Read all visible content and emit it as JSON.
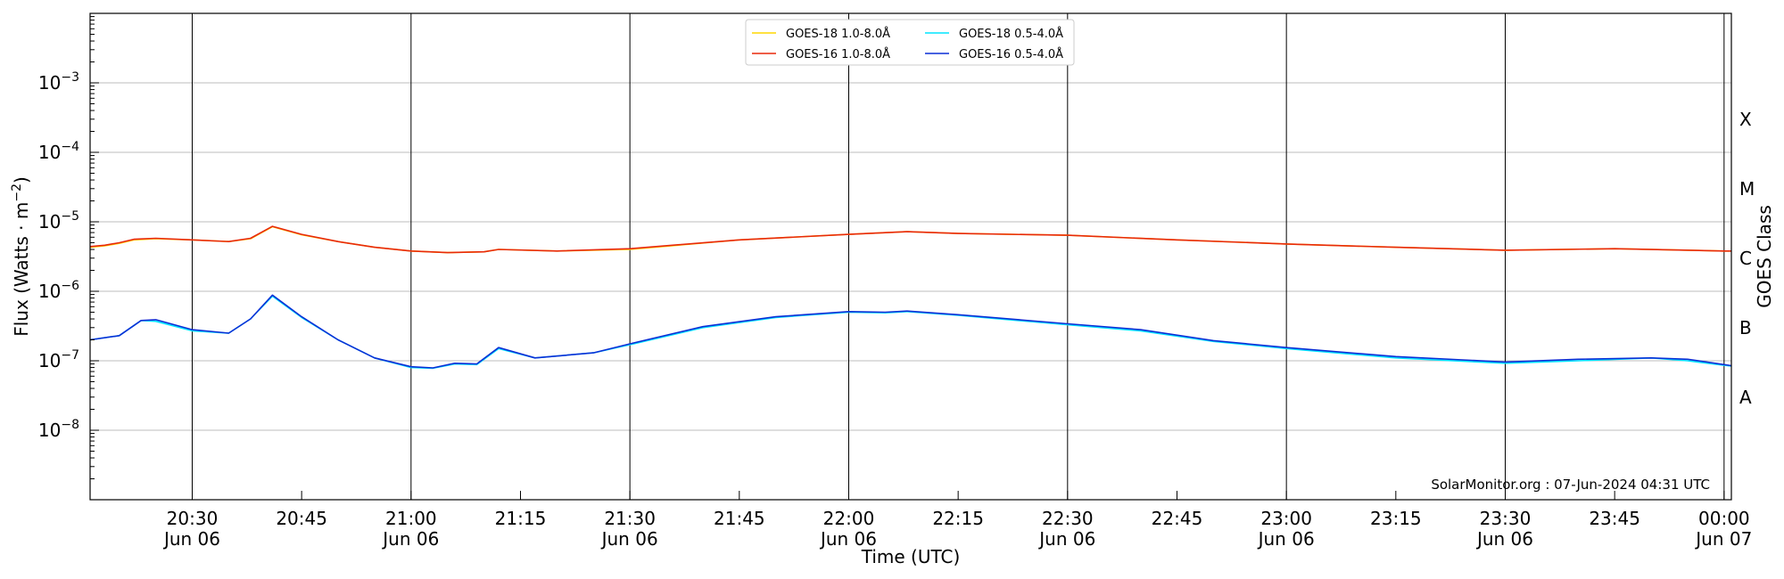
{
  "chart_data": {
    "type": "line",
    "xlabel": "Time (UTC)",
    "ylabel_main": "Flux (Watts · m",
    "ylabel_exp": "−2",
    "ylabel_close": ")",
    "y2label": "GOES Class",
    "yscale": "log",
    "ylim": [
      1e-09,
      0.01
    ],
    "xlim": [
      "2024-06-06T20:16",
      "2024-06-07T00:01"
    ],
    "grid": true,
    "legend_position": "upper-center",
    "credit": "SolarMonitor.org : 07-Jun-2024 04:31 UTC",
    "y_ticks": [
      {
        "value": 1e-08,
        "base": "10",
        "exp": "−8"
      },
      {
        "value": 1e-07,
        "base": "10",
        "exp": "−7"
      },
      {
        "value": 1e-06,
        "base": "10",
        "exp": "−6"
      },
      {
        "value": 1e-05,
        "base": "10",
        "exp": "−5"
      },
      {
        "value": 0.0001,
        "base": "10",
        "exp": "−4"
      },
      {
        "value": 0.001,
        "base": "10",
        "exp": "−3"
      }
    ],
    "x_ticks": [
      {
        "time": "2024-06-06T20:30",
        "line1": "20:30",
        "line2": "Jun 06"
      },
      {
        "time": "2024-06-06T20:45",
        "line1": "20:45",
        "line2": ""
      },
      {
        "time": "2024-06-06T21:00",
        "line1": "21:00",
        "line2": "Jun 06"
      },
      {
        "time": "2024-06-06T21:15",
        "line1": "21:15",
        "line2": ""
      },
      {
        "time": "2024-06-06T21:30",
        "line1": "21:30",
        "line2": "Jun 06"
      },
      {
        "time": "2024-06-06T21:45",
        "line1": "21:45",
        "line2": ""
      },
      {
        "time": "2024-06-06T22:00",
        "line1": "22:00",
        "line2": "Jun 06"
      },
      {
        "time": "2024-06-06T22:15",
        "line1": "22:15",
        "line2": ""
      },
      {
        "time": "2024-06-06T22:30",
        "line1": "22:30",
        "line2": "Jun 06"
      },
      {
        "time": "2024-06-06T22:45",
        "line1": "22:45",
        "line2": ""
      },
      {
        "time": "2024-06-06T23:00",
        "line1": "23:00",
        "line2": "Jun 06"
      },
      {
        "time": "2024-06-06T23:15",
        "line1": "23:15",
        "line2": ""
      },
      {
        "time": "2024-06-06T23:30",
        "line1": "23:30",
        "line2": "Jun 06"
      },
      {
        "time": "2024-06-06T23:45",
        "line1": "23:45",
        "line2": ""
      },
      {
        "time": "2024-06-07T00:00",
        "line1": "00:00",
        "line2": "Jun 07"
      }
    ],
    "vertical_lines": [
      "2024-06-06T20:30",
      "2024-06-06T21:00",
      "2024-06-06T21:30",
      "2024-06-06T22:00",
      "2024-06-06T22:30",
      "2024-06-06T23:00",
      "2024-06-06T23:30",
      "2024-06-07T00:00"
    ],
    "goes_classes": [
      {
        "label": "A",
        "flux": 3e-08
      },
      {
        "label": "B",
        "flux": 3e-07
      },
      {
        "label": "C",
        "flux": 3e-06
      },
      {
        "label": "M",
        "flux": 3e-05
      },
      {
        "label": "X",
        "flux": 0.0003
      }
    ],
    "series": [
      {
        "name": "GOES-18 1.0-8.0Å",
        "color": "#FFD700",
        "x": [
          "2024-06-06T20:16",
          "2024-06-06T20:18",
          "2024-06-06T20:20",
          "2024-06-06T20:22",
          "2024-06-06T20:25",
          "2024-06-06T20:30",
          "2024-06-06T20:35",
          "2024-06-06T20:38",
          "2024-06-06T20:41",
          "2024-06-06T20:45",
          "2024-06-06T20:50",
          "2024-06-06T20:55",
          "2024-06-06T21:00",
          "2024-06-06T21:05",
          "2024-06-06T21:10",
          "2024-06-06T21:12",
          "2024-06-06T21:20",
          "2024-06-06T21:30",
          "2024-06-06T21:45",
          "2024-06-06T22:00",
          "2024-06-06T22:08",
          "2024-06-06T22:15",
          "2024-06-06T22:30",
          "2024-06-06T22:45",
          "2024-06-06T23:00",
          "2024-06-06T23:15",
          "2024-06-06T23:30",
          "2024-06-06T23:45",
          "2024-06-07T00:00",
          "2024-06-07T00:01"
        ],
        "y": [
          4.3e-06,
          4.5e-06,
          4.9e-06,
          5.5e-06,
          5.7e-06,
          5.5e-06,
          5.2e-06,
          5.7e-06,
          8.5e-06,
          6.5e-06,
          5.2e-06,
          4.3e-06,
          3.8e-06,
          3.6e-06,
          3.7e-06,
          4e-06,
          3.8e-06,
          4e-06,
          5.5e-06,
          6.6e-06,
          7.2e-06,
          6.8e-06,
          6.4e-06,
          5.5e-06,
          4.8e-06,
          4.3e-06,
          3.9e-06,
          4.1e-06,
          3.8e-06,
          3.8e-06
        ]
      },
      {
        "name": "GOES-18 0.5-4.0Å",
        "color": "#00E5FF",
        "x": [
          "2024-06-06T20:16",
          "2024-06-06T20:20",
          "2024-06-06T20:23",
          "2024-06-06T20:25",
          "2024-06-06T20:30",
          "2024-06-06T20:35",
          "2024-06-06T20:38",
          "2024-06-06T20:41",
          "2024-06-06T20:45",
          "2024-06-06T20:50",
          "2024-06-06T20:55",
          "2024-06-06T21:00",
          "2024-06-06T21:03",
          "2024-06-06T21:06",
          "2024-06-06T21:09",
          "2024-06-06T21:12",
          "2024-06-06T21:17",
          "2024-06-06T21:25",
          "2024-06-06T21:30",
          "2024-06-06T21:40",
          "2024-06-06T21:50",
          "2024-06-06T22:00",
          "2024-06-06T22:05",
          "2024-06-06T22:08",
          "2024-06-06T22:15",
          "2024-06-06T22:30",
          "2024-06-06T22:40",
          "2024-06-06T22:50",
          "2024-06-06T23:00",
          "2024-06-06T23:15",
          "2024-06-06T23:30",
          "2024-06-06T23:40",
          "2024-06-06T23:50",
          "2024-06-06T23:55",
          "2024-06-07T00:00",
          "2024-06-07T00:01"
        ],
        "y": [
          2e-07,
          2.3e-07,
          3.8e-07,
          3.7e-07,
          2.7e-07,
          2.5e-07,
          4e-07,
          8.5e-07,
          4.2e-07,
          2e-07,
          1.1e-07,
          8e-08,
          7.8e-08,
          9e-08,
          8.8e-08,
          1.5e-07,
          1.1e-07,
          1.3e-07,
          1.7e-07,
          3e-07,
          4.2e-07,
          5e-07,
          4.9e-07,
          5.1e-07,
          4.5e-07,
          3.3e-07,
          2.7e-07,
          1.9e-07,
          1.5e-07,
          1.1e-07,
          9.2e-08,
          1e-07,
          1.1e-07,
          1e-07,
          8.6e-08,
          8.4e-08
        ]
      },
      {
        "name": "GOES-16 1.0-8.0Å",
        "color": "#E8290B",
        "x": [
          "2024-06-06T20:16",
          "2024-06-06T20:18",
          "2024-06-06T20:20",
          "2024-06-06T20:22",
          "2024-06-06T20:25",
          "2024-06-06T20:30",
          "2024-06-06T20:35",
          "2024-06-06T20:38",
          "2024-06-06T20:41",
          "2024-06-06T20:45",
          "2024-06-06T20:50",
          "2024-06-06T20:55",
          "2024-06-06T21:00",
          "2024-06-06T21:05",
          "2024-06-06T21:10",
          "2024-06-06T21:12",
          "2024-06-06T21:20",
          "2024-06-06T21:30",
          "2024-06-06T21:45",
          "2024-06-06T22:00",
          "2024-06-06T22:08",
          "2024-06-06T22:15",
          "2024-06-06T22:30",
          "2024-06-06T22:45",
          "2024-06-06T23:00",
          "2024-06-06T23:15",
          "2024-06-06T23:30",
          "2024-06-06T23:45",
          "2024-06-07T00:00",
          "2024-06-07T00:01"
        ],
        "y": [
          4.4e-06,
          4.6e-06,
          5e-06,
          5.6e-06,
          5.8e-06,
          5.5e-06,
          5.2e-06,
          5.8e-06,
          8.6e-06,
          6.6e-06,
          5.2e-06,
          4.3e-06,
          3.8e-06,
          3.6e-06,
          3.7e-06,
          4e-06,
          3.8e-06,
          4.1e-06,
          5.5e-06,
          6.6e-06,
          7.2e-06,
          6.8e-06,
          6.4e-06,
          5.5e-06,
          4.8e-06,
          4.3e-06,
          3.9e-06,
          4.1e-06,
          3.8e-06,
          3.8e-06
        ]
      },
      {
        "name": "GOES-16 0.5-4.0Å",
        "color": "#0A2FD6",
        "x": [
          "2024-06-06T20:16",
          "2024-06-06T20:20",
          "2024-06-06T20:23",
          "2024-06-06T20:25",
          "2024-06-06T20:30",
          "2024-06-06T20:35",
          "2024-06-06T20:38",
          "2024-06-06T20:41",
          "2024-06-06T20:45",
          "2024-06-06T20:50",
          "2024-06-06T20:55",
          "2024-06-06T21:00",
          "2024-06-06T21:03",
          "2024-06-06T21:06",
          "2024-06-06T21:09",
          "2024-06-06T21:12",
          "2024-06-06T21:17",
          "2024-06-06T21:25",
          "2024-06-06T21:30",
          "2024-06-06T21:40",
          "2024-06-06T21:50",
          "2024-06-06T22:00",
          "2024-06-06T22:05",
          "2024-06-06T22:08",
          "2024-06-06T22:15",
          "2024-06-06T22:30",
          "2024-06-06T22:40",
          "2024-06-06T22:50",
          "2024-06-06T23:00",
          "2024-06-06T23:15",
          "2024-06-06T23:30",
          "2024-06-06T23:40",
          "2024-06-06T23:50",
          "2024-06-06T23:55",
          "2024-06-07T00:00",
          "2024-06-07T00:01"
        ],
        "y": [
          2e-07,
          2.3e-07,
          3.8e-07,
          3.9e-07,
          2.8e-07,
          2.5e-07,
          4e-07,
          8.8e-07,
          4.3e-07,
          2e-07,
          1.1e-07,
          8.2e-08,
          7.9e-08,
          9.2e-08,
          9e-08,
          1.55e-07,
          1.1e-07,
          1.3e-07,
          1.75e-07,
          3.1e-07,
          4.3e-07,
          5.1e-07,
          5e-07,
          5.2e-07,
          4.6e-07,
          3.4e-07,
          2.8e-07,
          1.95e-07,
          1.55e-07,
          1.15e-07,
          9.6e-08,
          1.05e-07,
          1.1e-07,
          1.05e-07,
          8.8e-08,
          8.5e-08
        ]
      }
    ]
  }
}
